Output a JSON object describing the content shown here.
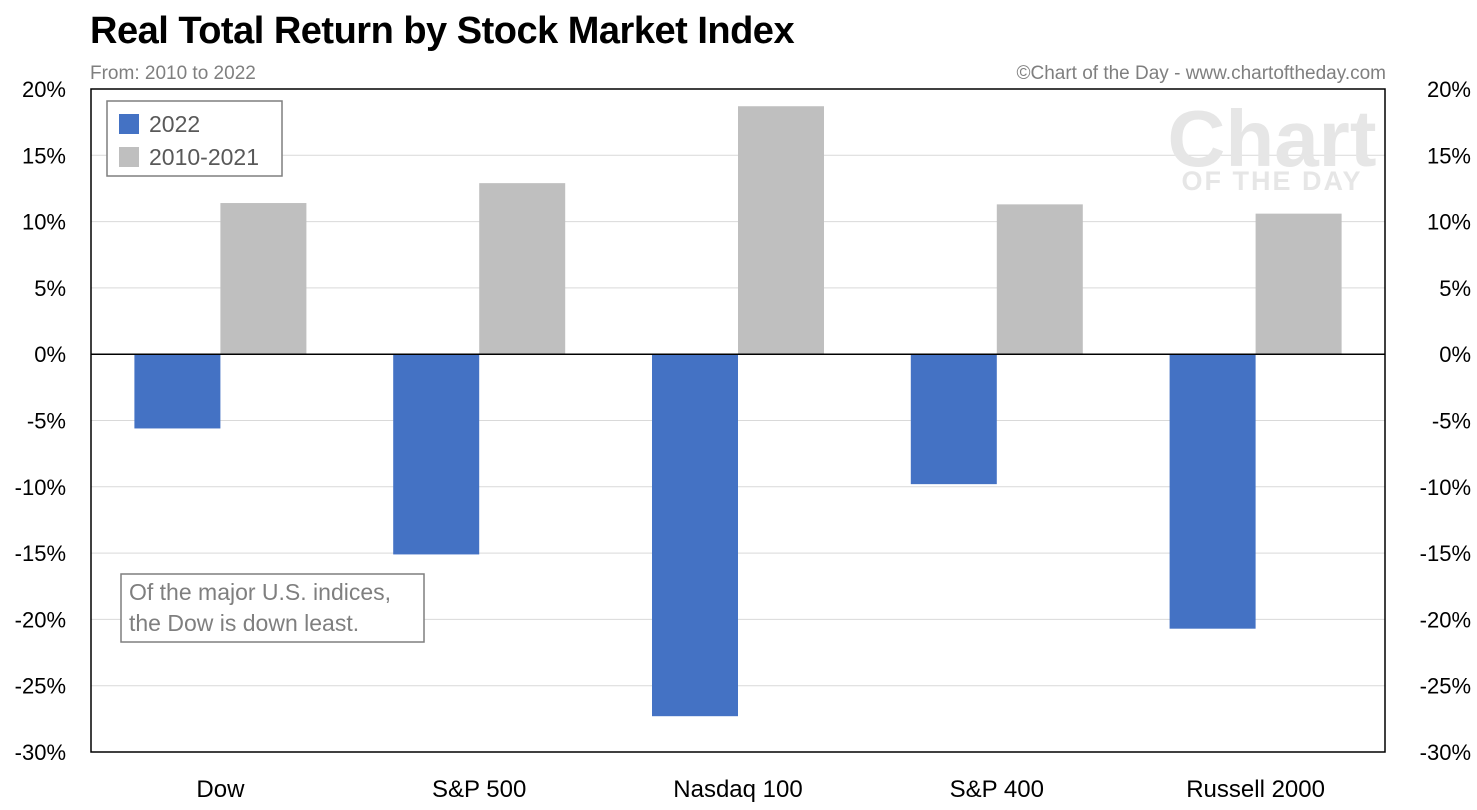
{
  "header": {
    "title": "Real Total Return by Stock Market Index",
    "subtitle": "From: 2010 to 2022",
    "credit": "©Chart of the Day - www.chartoftheday.com"
  },
  "watermark": {
    "line1": "Chart",
    "line2": "OF THE DAY"
  },
  "annotation": {
    "line1": "Of the major U.S. indices,",
    "line2": "the Dow is down least."
  },
  "colors": {
    "series_2022": "#4472c4",
    "series_2010_2021": "#bfbfbf",
    "grid": "#d9d9d9",
    "annotation_border": "#7f7f7f"
  },
  "chart_data": {
    "type": "bar",
    "categories": [
      "Dow",
      "S&P 500",
      "Nasdaq 100",
      "S&P 400",
      "Russell 2000"
    ],
    "series": [
      {
        "name": "2022",
        "values": [
          -5.6,
          -15.1,
          -27.3,
          -9.8,
          -20.7
        ]
      },
      {
        "name": "2010-2021",
        "values": [
          11.4,
          12.9,
          18.7,
          11.3,
          10.6
        ]
      }
    ],
    "ylim": [
      -30,
      20
    ],
    "yticks": [
      20,
      15,
      10,
      5,
      0,
      -5,
      -10,
      -15,
      -20,
      -25,
      -30
    ],
    "ytick_labels": [
      "20%",
      "15%",
      "10%",
      "5%",
      "0%",
      "-5%",
      "-10%",
      "-15%",
      "-20%",
      "-25%",
      "-30%"
    ],
    "y_axes": "left-and-right",
    "grid": true,
    "legend_position": "top-left"
  }
}
